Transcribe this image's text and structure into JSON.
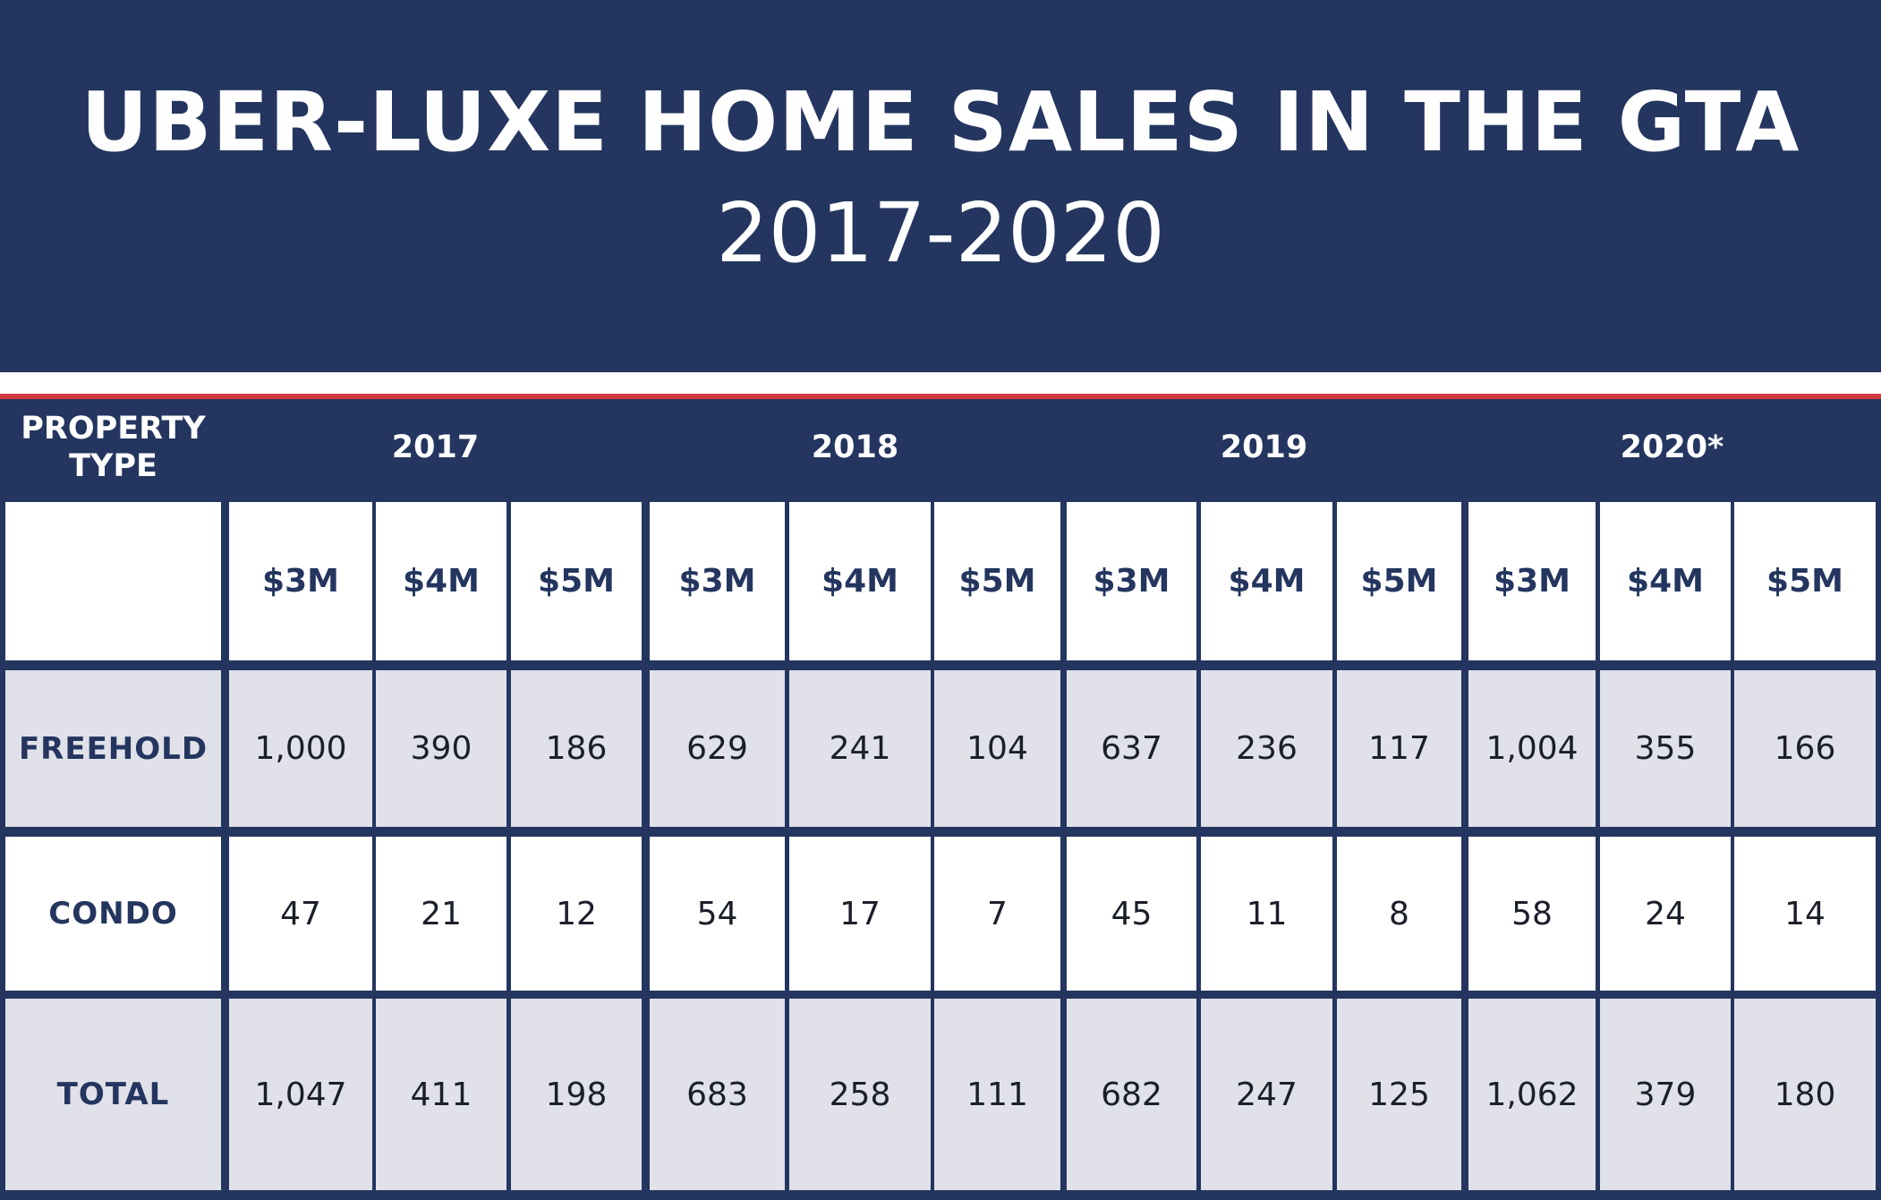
{
  "chart_data": {
    "type": "table",
    "title": "UBER-LUXE HOME SALES IN THE GTA",
    "subtitle": "2017-2020",
    "corner_label": "PROPERTY TYPE",
    "years": [
      "2017",
      "2018",
      "2019",
      "2020*"
    ],
    "price_columns": [
      "$3M",
      "$4M",
      "$5M",
      "$3M",
      "$4M",
      "$5M",
      "$3M",
      "$4M",
      "$5M",
      "$3M",
      "$4M",
      "$5M"
    ],
    "rows": [
      {
        "label": "FREEHOLD",
        "values": [
          "1,000",
          "390",
          "186",
          "629",
          "241",
          "104",
          "637",
          "236",
          "117",
          "1,004",
          "355",
          "166"
        ]
      },
      {
        "label": "CONDO",
        "values": [
          "47",
          "21",
          "12",
          "54",
          "17",
          "7",
          "45",
          "11",
          "8",
          "58",
          "24",
          "14"
        ]
      },
      {
        "label": "TOTAL",
        "values": [
          "1,047",
          "411",
          "198",
          "683",
          "258",
          "111",
          "682",
          "247",
          "125",
          "1,062",
          "379",
          "180"
        ]
      }
    ]
  },
  "colors": {
    "navy": "#24365f",
    "red_accent": "#d23a3f",
    "row_shade": "#e0e1e9",
    "white": "#ffffff"
  }
}
